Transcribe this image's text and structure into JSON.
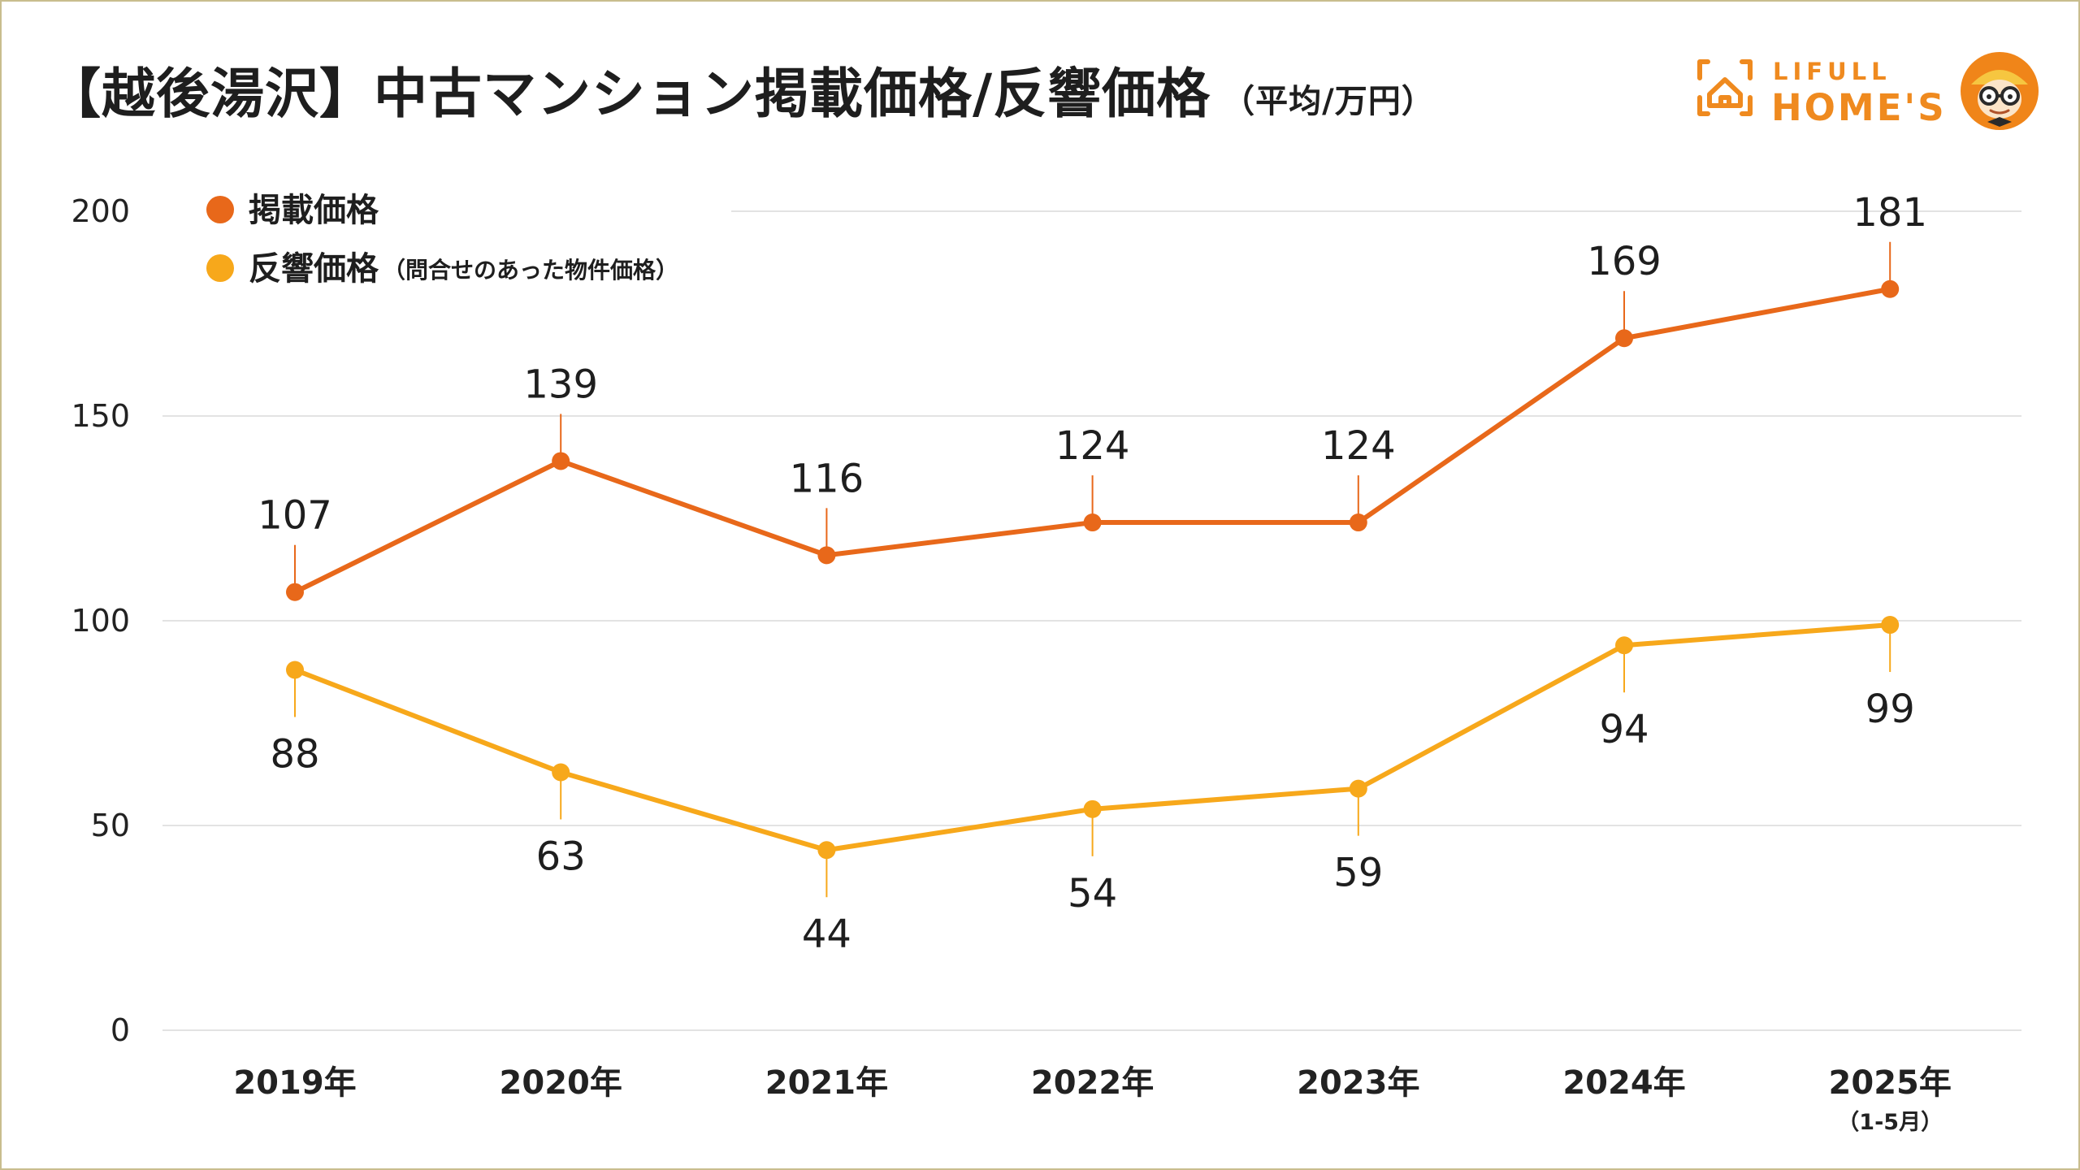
{
  "title": "【越後湯沢】中古マンション掲載価格/反響価格",
  "subtitle": "（平均/万円）",
  "logo": {
    "line1": "LIFULL",
    "line2": "HOME'S",
    "house_icon": "house-icon",
    "mascot_icon": "mascot-icon"
  },
  "colors": {
    "listing": "#e8681a",
    "response": "#f7a81b",
    "grid": "#e3e3e3",
    "border": "#c9bd8e"
  },
  "chart_data": {
    "type": "line",
    "categories": [
      "2019年",
      "2020年",
      "2021年",
      "2022年",
      "2023年",
      "2024年",
      "2025年"
    ],
    "category_notes": [
      "",
      "",
      "",
      "",
      "",
      "",
      "（1-5月）"
    ],
    "ylim": [
      0,
      200
    ],
    "yticks": [
      0,
      50,
      100,
      150,
      200
    ],
    "grid": true,
    "legend_position": "top-left",
    "series": [
      {
        "name": "掲載価格",
        "name_note": "",
        "color": "#e8681a",
        "label_position": "above",
        "values": [
          107,
          139,
          116,
          124,
          124,
          169,
          181
        ]
      },
      {
        "name": "反響価格",
        "name_note": "（問合せのあった物件価格）",
        "color": "#f7a81b",
        "label_position": "below",
        "values": [
          88,
          63,
          44,
          54,
          59,
          94,
          99
        ]
      }
    ]
  }
}
